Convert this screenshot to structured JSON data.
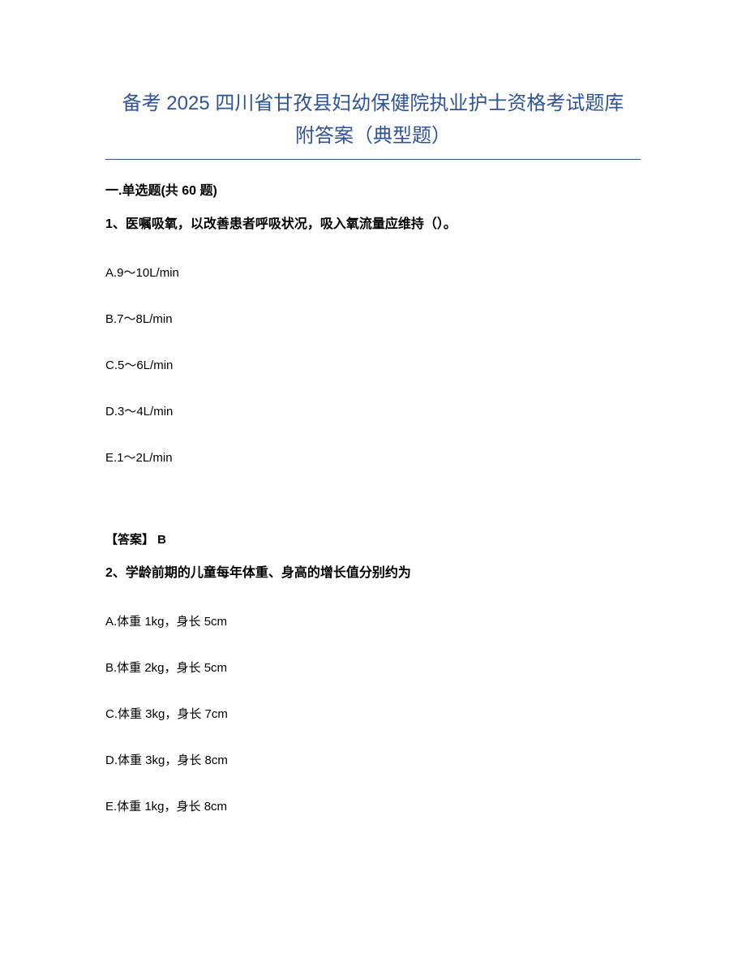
{
  "title_line1": "备考 2025 四川省甘孜县妇幼保健院执业护士资格考试题库",
  "title_line2": "附答案（典型题）",
  "section_heading": "一.单选题(共 60 题)",
  "q1": {
    "text": "1、医嘱吸氧，以改善患者呼吸状况，吸入氧流量应维持（）。",
    "options": {
      "a": "A.9～10L/min",
      "b": "B.7～8L/min",
      "c": "C.5～6L/min",
      "d": "D.3～4L/min",
      "e": "E.1～2L/min"
    },
    "answer_label": "【答案】 ",
    "answer_value": "B"
  },
  "q2": {
    "text": "2、学龄前期的儿童每年体重、身高的增长值分别约为",
    "options": {
      "a": "A.体重 1kg，身长 5cm",
      "b": "B.体重 2kg，身长 5cm",
      "c": "C.体重 3kg，身长 7cm",
      "d": "D.体重 3kg，身长 8cm",
      "e": "E.体重 1kg，身长 8cm"
    }
  },
  "colors": {
    "title_color": "#2e5496",
    "text_color": "#000000",
    "background": "#ffffff"
  }
}
